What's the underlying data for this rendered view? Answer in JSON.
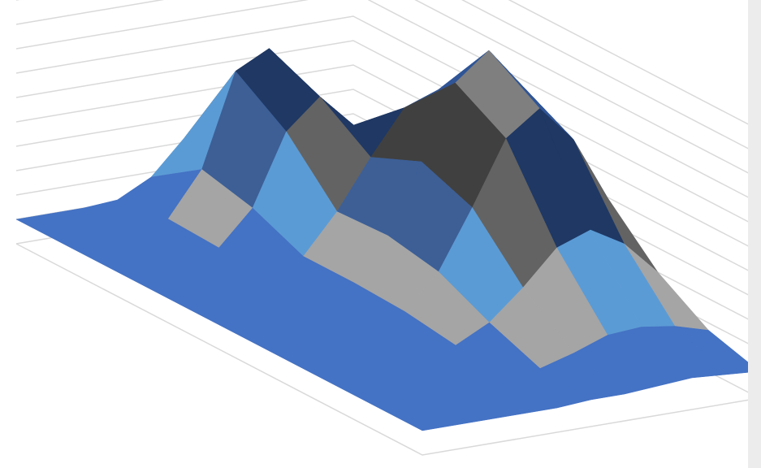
{
  "chart_data": {
    "type": "surface",
    "z": [
      [
        1.0,
        1.0,
        1.0,
        1.1,
        1.8,
        3.2,
        3.5,
        2.2,
        1.3,
        1.1,
        1.1
      ],
      [
        1.0,
        1.0,
        1.0,
        1.4,
        3.2,
        7.0,
        7.7,
        4.5,
        2.3,
        1.6,
        1.4
      ],
      [
        1.0,
        1.0,
        1.0,
        1.3,
        2.7,
        5.6,
        6.8,
        5.4,
        4.2,
        3.4,
        2.4
      ],
      [
        1.0,
        1.0,
        1.0,
        1.2,
        1.8,
        3.4,
        5.4,
        7.2,
        7.7,
        6.5,
        4.3
      ],
      [
        1.0,
        1.0,
        1.0,
        1.2,
        1.8,
        3.5,
        6.3,
        9.3,
        10.4,
        8.7,
        5.6
      ],
      [
        1.0,
        1.0,
        1.0,
        1.2,
        1.7,
        3.1,
        5.5,
        8.1,
        9.1,
        7.6,
        5.0
      ],
      [
        1.0,
        1.0,
        1.0,
        1.1,
        1.4,
        2.1,
        3.3,
        4.7,
        5.2,
        4.4,
        3.0
      ],
      [
        1.0,
        1.0,
        1.0,
        1.0,
        1.1,
        1.3,
        1.7,
        2.2,
        2.3,
        2.1,
        1.7
      ],
      [
        1.0,
        1.0,
        1.0,
        1.0,
        1.0,
        1.1,
        1.1,
        1.2,
        1.3,
        1.2,
        1.1
      ]
    ],
    "zlim": [
      0,
      11
    ],
    "zticks": [
      0,
      1,
      2,
      3,
      4,
      5,
      6,
      7,
      8,
      9,
      10,
      11
    ],
    "grid": true,
    "band_colors": [
      "#4472c4",
      "#4472c4",
      "#a5a5a5",
      "#5b9bd5",
      "#3d5f96",
      "#636363",
      "#1f3864",
      "#404040",
      "#2f5597",
      "#7f7f7f",
      "#8faadc"
    ]
  }
}
